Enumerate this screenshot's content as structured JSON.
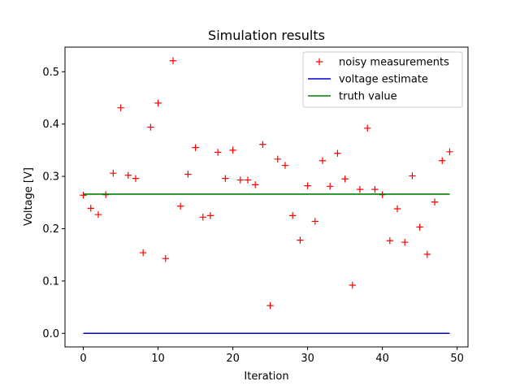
{
  "chart_data": {
    "type": "line",
    "title": "Simulation results",
    "xlabel": "Iteration",
    "ylabel": "Voltage [V]",
    "xlim": [
      -2.45,
      51.45
    ],
    "ylim": [
      -0.026,
      0.547
    ],
    "xticks": [
      0,
      10,
      20,
      30,
      40,
      50
    ],
    "yticks": [
      0.0,
      0.1,
      0.2,
      0.3,
      0.4,
      0.5
    ],
    "xtick_labels": [
      "0",
      "10",
      "20",
      "30",
      "40",
      "50"
    ],
    "ytick_labels": [
      "0.0",
      "0.1",
      "0.2",
      "0.3",
      "0.4",
      "0.5"
    ],
    "grid": false,
    "legend_position": "upper right",
    "series": [
      {
        "name": "noisy measurements",
        "style": "markers",
        "marker": "+",
        "color": "#ff0000",
        "x": [
          0,
          1,
          2,
          3,
          4,
          5,
          6,
          7,
          8,
          9,
          10,
          11,
          12,
          13,
          14,
          15,
          16,
          17,
          18,
          19,
          20,
          21,
          22,
          23,
          24,
          25,
          26,
          27,
          28,
          29,
          30,
          31,
          32,
          33,
          34,
          35,
          36,
          37,
          38,
          39,
          40,
          41,
          42,
          43,
          44,
          45,
          46,
          47,
          48,
          49
        ],
        "y": [
          0.264,
          0.239,
          0.227,
          0.265,
          0.306,
          0.431,
          0.302,
          0.296,
          0.154,
          0.394,
          0.44,
          0.143,
          0.521,
          0.243,
          0.304,
          0.355,
          0.222,
          0.225,
          0.346,
          0.296,
          0.35,
          0.293,
          0.293,
          0.284,
          0.361,
          0.053,
          0.333,
          0.321,
          0.225,
          0.178,
          0.282,
          0.214,
          0.33,
          0.281,
          0.344,
          0.295,
          0.092,
          0.275,
          0.392,
          0.275,
          0.265,
          0.177,
          0.238,
          0.174,
          0.301,
          0.203,
          0.151,
          0.251,
          0.33,
          0.347
        ]
      },
      {
        "name": "voltage estimate",
        "style": "line",
        "color": "#0000cc",
        "x": [
          0,
          49
        ],
        "y": [
          0.0,
          0.0
        ]
      },
      {
        "name": "truth value",
        "style": "line",
        "color": "#008000",
        "x": [
          0,
          49
        ],
        "y": [
          0.266,
          0.266
        ]
      }
    ]
  }
}
